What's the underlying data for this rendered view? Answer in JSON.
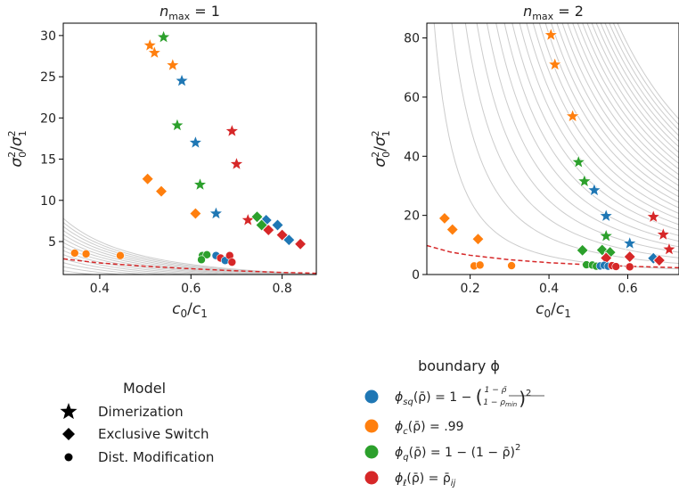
{
  "chart_data": [
    {
      "type": "scatter",
      "title": "n_max = 1",
      "xlabel": "c0/c1",
      "ylabel": "σ0²/σ1²",
      "xlim": [
        0.32,
        0.875
      ],
      "ylim": [
        1.0,
        31.5
      ],
      "xticks": [
        0.4,
        0.6,
        0.8
      ],
      "yticks": [
        5,
        10,
        15,
        20,
        25,
        30
      ],
      "iso_curves_k": [
        0.05,
        0.1,
        0.15,
        0.2,
        0.25,
        0.3,
        0.35,
        0.4,
        0.45,
        0.5,
        0.55,
        0.6,
        0.65,
        0.7,
        0.75,
        0.8
      ],
      "boundary": [
        [
          0.32,
          2.9
        ],
        [
          0.4,
          2.4
        ],
        [
          0.5,
          2.0
        ],
        [
          0.6,
          1.7
        ],
        [
          0.7,
          1.45
        ],
        [
          0.8,
          1.25
        ],
        [
          0.875,
          1.15
        ]
      ],
      "points": [
        {
          "x": 0.54,
          "y": 29.8,
          "c": "green",
          "m": "star"
        },
        {
          "x": 0.51,
          "y": 28.8,
          "c": "orange",
          "m": "star"
        },
        {
          "x": 0.52,
          "y": 27.9,
          "c": "orange",
          "m": "star"
        },
        {
          "x": 0.56,
          "y": 26.4,
          "c": "orange",
          "m": "star"
        },
        {
          "x": 0.58,
          "y": 24.5,
          "c": "blue",
          "m": "star"
        },
        {
          "x": 0.57,
          "y": 19.1,
          "c": "green",
          "m": "star"
        },
        {
          "x": 0.69,
          "y": 18.4,
          "c": "red",
          "m": "star"
        },
        {
          "x": 0.61,
          "y": 17.0,
          "c": "blue",
          "m": "star"
        },
        {
          "x": 0.7,
          "y": 14.4,
          "c": "red",
          "m": "star"
        },
        {
          "x": 0.505,
          "y": 12.6,
          "c": "orange",
          "m": "diamond"
        },
        {
          "x": 0.62,
          "y": 11.9,
          "c": "green",
          "m": "star"
        },
        {
          "x": 0.535,
          "y": 11.1,
          "c": "orange",
          "m": "diamond"
        },
        {
          "x": 0.61,
          "y": 8.4,
          "c": "orange",
          "m": "diamond"
        },
        {
          "x": 0.655,
          "y": 8.4,
          "c": "blue",
          "m": "star"
        },
        {
          "x": 0.725,
          "y": 7.6,
          "c": "red",
          "m": "star"
        },
        {
          "x": 0.745,
          "y": 8.0,
          "c": "green",
          "m": "diamond"
        },
        {
          "x": 0.765,
          "y": 7.6,
          "c": "blue",
          "m": "diamond"
        },
        {
          "x": 0.755,
          "y": 7.0,
          "c": "green",
          "m": "diamond"
        },
        {
          "x": 0.79,
          "y": 7.0,
          "c": "blue",
          "m": "diamond"
        },
        {
          "x": 0.77,
          "y": 6.4,
          "c": "red",
          "m": "diamond"
        },
        {
          "x": 0.8,
          "y": 5.8,
          "c": "red",
          "m": "diamond"
        },
        {
          "x": 0.815,
          "y": 5.2,
          "c": "blue",
          "m": "diamond"
        },
        {
          "x": 0.84,
          "y": 4.7,
          "c": "red",
          "m": "diamond"
        },
        {
          "x": 0.345,
          "y": 3.6,
          "c": "orange",
          "m": "dot"
        },
        {
          "x": 0.37,
          "y": 3.5,
          "c": "orange",
          "m": "dot"
        },
        {
          "x": 0.445,
          "y": 3.3,
          "c": "orange",
          "m": "dot"
        },
        {
          "x": 0.625,
          "y": 3.3,
          "c": "green",
          "m": "dot"
        },
        {
          "x": 0.635,
          "y": 3.4,
          "c": "green",
          "m": "dot"
        },
        {
          "x": 0.623,
          "y": 2.8,
          "c": "green",
          "m": "dot"
        },
        {
          "x": 0.655,
          "y": 3.3,
          "c": "blue",
          "m": "dot"
        },
        {
          "x": 0.665,
          "y": 3.0,
          "c": "red",
          "m": "dot"
        },
        {
          "x": 0.675,
          "y": 2.7,
          "c": "blue",
          "m": "dot"
        },
        {
          "x": 0.685,
          "y": 3.3,
          "c": "red",
          "m": "dot"
        },
        {
          "x": 0.69,
          "y": 2.5,
          "c": "red",
          "m": "dot"
        }
      ]
    },
    {
      "type": "scatter",
      "title": "n_max = 2",
      "xlabel": "c0/c1",
      "ylabel": "σ0²/σ1²",
      "xlim": [
        0.09,
        0.73
      ],
      "ylim": [
        0,
        85
      ],
      "xticks": [
        0.2,
        0.4,
        0.6
      ],
      "yticks": [
        0,
        20,
        40,
        60,
        80
      ],
      "iso_curves_k": [
        1,
        2,
        3,
        4,
        5,
        6,
        7,
        8,
        9,
        10,
        11,
        12,
        13,
        14,
        15,
        16,
        17,
        18,
        19,
        20,
        21,
        22,
        23,
        24,
        25,
        26,
        27,
        28
      ],
      "boundary": [
        [
          0.09,
          9.8
        ],
        [
          0.15,
          7.6
        ],
        [
          0.2,
          6.5
        ],
        [
          0.3,
          5.0
        ],
        [
          0.4,
          4.0
        ],
        [
          0.5,
          3.3
        ],
        [
          0.6,
          2.8
        ],
        [
          0.73,
          2.3
        ]
      ],
      "points": [
        {
          "x": 0.405,
          "y": 81.0,
          "c": "orange",
          "m": "star"
        },
        {
          "x": 0.415,
          "y": 71.0,
          "c": "orange",
          "m": "star"
        },
        {
          "x": 0.46,
          "y": 53.5,
          "c": "orange",
          "m": "star"
        },
        {
          "x": 0.475,
          "y": 38.0,
          "c": "green",
          "m": "star"
        },
        {
          "x": 0.49,
          "y": 31.5,
          "c": "green",
          "m": "star"
        },
        {
          "x": 0.515,
          "y": 28.5,
          "c": "blue",
          "m": "star"
        },
        {
          "x": 0.545,
          "y": 19.8,
          "c": "blue",
          "m": "star"
        },
        {
          "x": 0.545,
          "y": 13.0,
          "c": "green",
          "m": "star"
        },
        {
          "x": 0.605,
          "y": 10.5,
          "c": "blue",
          "m": "star"
        },
        {
          "x": 0.665,
          "y": 19.5,
          "c": "red",
          "m": "star"
        },
        {
          "x": 0.69,
          "y": 13.5,
          "c": "red",
          "m": "star"
        },
        {
          "x": 0.705,
          "y": 8.5,
          "c": "red",
          "m": "star"
        },
        {
          "x": 0.135,
          "y": 19.0,
          "c": "orange",
          "m": "diamond"
        },
        {
          "x": 0.155,
          "y": 15.2,
          "c": "orange",
          "m": "diamond"
        },
        {
          "x": 0.22,
          "y": 12.0,
          "c": "orange",
          "m": "diamond"
        },
        {
          "x": 0.485,
          "y": 8.2,
          "c": "green",
          "m": "diamond"
        },
        {
          "x": 0.535,
          "y": 8.3,
          "c": "green",
          "m": "diamond"
        },
        {
          "x": 0.555,
          "y": 7.5,
          "c": "green",
          "m": "diamond"
        },
        {
          "x": 0.545,
          "y": 5.6,
          "c": "red",
          "m": "diamond"
        },
        {
          "x": 0.605,
          "y": 6.0,
          "c": "red",
          "m": "diamond"
        },
        {
          "x": 0.665,
          "y": 5.5,
          "c": "blue",
          "m": "diamond"
        },
        {
          "x": 0.68,
          "y": 4.8,
          "c": "red",
          "m": "diamond"
        },
        {
          "x": 0.21,
          "y": 2.9,
          "c": "orange",
          "m": "dot"
        },
        {
          "x": 0.225,
          "y": 3.2,
          "c": "orange",
          "m": "dot"
        },
        {
          "x": 0.305,
          "y": 3.0,
          "c": "orange",
          "m": "dot"
        },
        {
          "x": 0.495,
          "y": 3.3,
          "c": "green",
          "m": "dot"
        },
        {
          "x": 0.51,
          "y": 3.2,
          "c": "green",
          "m": "dot"
        },
        {
          "x": 0.52,
          "y": 2.8,
          "c": "green",
          "m": "dot"
        },
        {
          "x": 0.53,
          "y": 2.9,
          "c": "blue",
          "m": "dot"
        },
        {
          "x": 0.54,
          "y": 3.1,
          "c": "blue",
          "m": "dot"
        },
        {
          "x": 0.55,
          "y": 2.8,
          "c": "blue",
          "m": "dot"
        },
        {
          "x": 0.56,
          "y": 3.0,
          "c": "red",
          "m": "dot"
        },
        {
          "x": 0.57,
          "y": 2.7,
          "c": "red",
          "m": "dot"
        },
        {
          "x": 0.605,
          "y": 2.6,
          "c": "red",
          "m": "dot"
        }
      ]
    }
  ],
  "colors": {
    "blue": "#1f77b4",
    "orange": "#ff7f0e",
    "green": "#2ca02c",
    "red": "#d62728",
    "iso": "#cccccc",
    "boundary": "#d62728"
  },
  "legend_model": {
    "title": "Model",
    "items": [
      {
        "label": "Dimerization",
        "marker": "star"
      },
      {
        "label": "Exclusive Switch",
        "marker": "diamond"
      },
      {
        "label": "Dist. Modification",
        "marker": "dot"
      }
    ]
  },
  "legend_boundary": {
    "title": "boundary ϕ",
    "items": [
      {
        "label": "ϕsq(ρ̄) = 1 − ((1 − ρ̄)/(1 − ρmin))²",
        "color": "blue"
      },
      {
        "label": "ϕc(ρ̄) = .99",
        "color": "orange"
      },
      {
        "label": "ϕq(ρ̄) = 1 − (1 − ρ̄)²",
        "color": "green"
      },
      {
        "label": "ϕℓ(ρ̄) = ρ̄ij",
        "color": "red"
      }
    ]
  }
}
